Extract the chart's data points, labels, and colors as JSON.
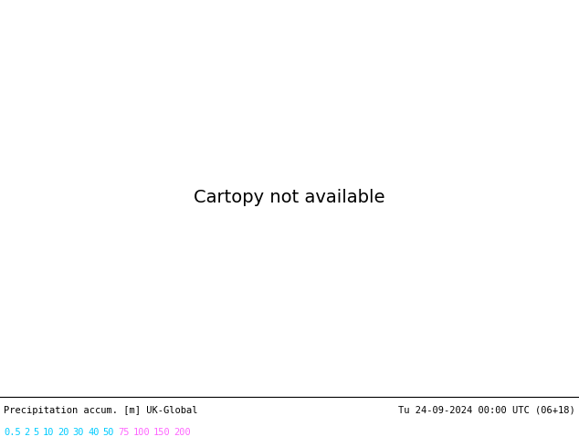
{
  "title_left": "Precipitation accum. [m] UK-Global",
  "title_right": "Tu 24-09-2024 00:00 UTC (06+18)",
  "colorbar_labels": [
    "0.5",
    "2",
    "5",
    "10",
    "20",
    "30",
    "40",
    "50",
    "75",
    "100",
    "150",
    "200"
  ],
  "label_colors_cyan": [
    "0.5",
    "2",
    "5",
    "10",
    "20",
    "30",
    "40",
    "50"
  ],
  "label_colors_magenta": [
    "75",
    "100",
    "150",
    "200"
  ],
  "cyan_color": "#00CCFF",
  "magenta_color": "#FF66FF",
  "fig_bg_color": "#FFFFFF",
  "land_color": "#C8B97A",
  "ocean_color": "#A0A8B0",
  "domain_color": "#F0F0F8",
  "green_area_color": "#AEDD88",
  "precip_colors": {
    "light_cyan": "#AAEEFF",
    "mid_cyan": "#55CCEE",
    "blue": "#3399DD",
    "dark_blue": "#1166BB",
    "magenta_ring": "#CC44CC",
    "magenta_core": "#880088",
    "purple_core": "#550055"
  },
  "isobar_blue": "#0033CC",
  "isobar_red": "#CC0000",
  "figsize": [
    6.34,
    4.9
  ],
  "dpi": 100,
  "map_extent": [
    -45,
    45,
    25,
    72
  ],
  "projection_lon": 0,
  "projection_lat": 50
}
